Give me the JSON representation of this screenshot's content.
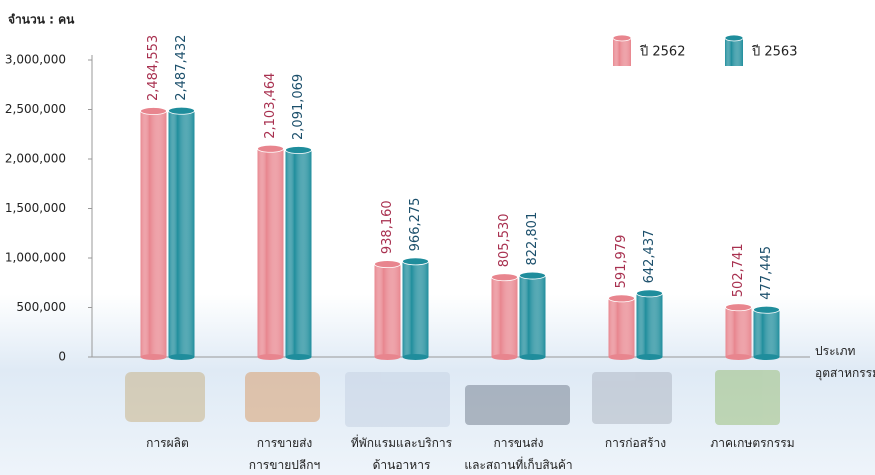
{
  "chart_data": {
    "type": "bar",
    "y_axis_label": "จำนวน : คน",
    "x_axis_label": "ประเภท\nอุตสาหกรรม",
    "categories": [
      "การผลิต",
      "การขายส่ง\nการขายปลีกฯ",
      "ที่พักแรมและบริการ\nด้านอาหาร",
      "การขนส่ง\nและสถานที่เก็บสินค้า",
      "การก่อสร้าง",
      "ภาคเกษตรกรรม"
    ],
    "series": [
      {
        "name": "ปี 2562",
        "color": "#e8858e",
        "label_color": "#a8304f",
        "values": [
          2484553,
          2103464,
          938160,
          805530,
          591979,
          502741
        ],
        "value_labels": [
          "2,484,553",
          "2,103,464",
          "938,160",
          "805,530",
          "591,979",
          "502,741"
        ]
      },
      {
        "name": "ปี 2563",
        "color": "#1f8d9c",
        "label_color": "#1b4f6b",
        "values": [
          2487432,
          2091069,
          966275,
          822801,
          642437,
          477445
        ],
        "value_labels": [
          "2,487,432",
          "2,091,069",
          "966,275",
          "822,801",
          "642,437",
          "477,445"
        ]
      }
    ],
    "ylim": [
      0,
      3000000
    ],
    "yticks": [
      0,
      {
        "value": 500000,
        "label": "500,000"
      },
      {
        "value": 1000000,
        "label": "1,000,000"
      },
      {
        "value": 1500000,
        "label": "1,500,000"
      },
      {
        "value": 2000000,
        "label": "2,000,000"
      },
      {
        "value": 2500000,
        "label": "2,500,000"
      },
      {
        "value": 3000000,
        "label": "3,000,000"
      }
    ],
    "legend": "top-right"
  }
}
